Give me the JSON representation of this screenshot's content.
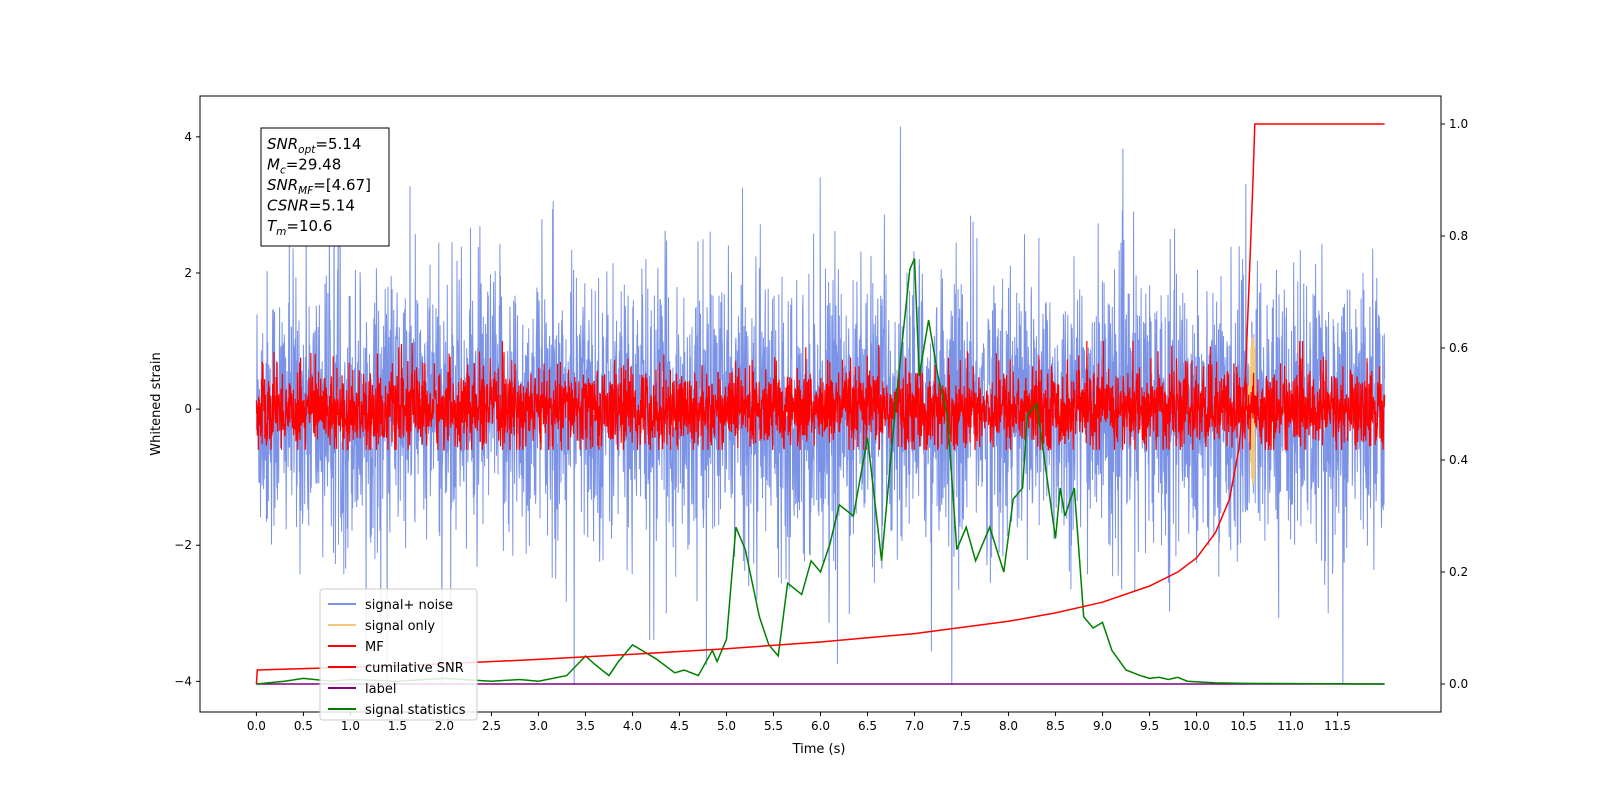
{
  "chart_data": {
    "type": "line",
    "xlabel": "Time (s)",
    "ylabel": "Whitened strain",
    "xlim": [
      -0.6,
      12.6
    ],
    "ylim": [
      -4.45,
      4.6
    ],
    "y2lim": [
      -0.05,
      1.05
    ],
    "xticks": [
      0.0,
      0.5,
      1.0,
      1.5,
      2.0,
      2.5,
      3.0,
      3.5,
      4.0,
      4.5,
      5.0,
      5.5,
      6.0,
      6.5,
      7.0,
      7.5,
      8.0,
      8.5,
      9.0,
      9.5,
      10.0,
      10.5,
      11.0,
      11.5
    ],
    "xtick_labels": [
      "0.0",
      "0.5",
      "1.0",
      "1.5",
      "2.0",
      "2.5",
      "3.0",
      "3.5",
      "4.0",
      "4.5",
      "5.0",
      "5.5",
      "6.0",
      "6.5",
      "7.0",
      "7.5",
      "8.0",
      "8.5",
      "9.0",
      "9.5",
      "10.0",
      "10.5",
      "11.0",
      "11.5"
    ],
    "yticks": [
      -4,
      -2,
      0,
      2,
      4
    ],
    "ytick_labels": [
      "−4",
      "−2",
      "0",
      "2",
      "4"
    ],
    "y2ticks": [
      0.0,
      0.2,
      0.4,
      0.6,
      0.8,
      1.0
    ],
    "y2tick_labels": [
      "0.0",
      "0.2",
      "0.4",
      "0.6",
      "0.8",
      "1.0"
    ],
    "legend_position": "lower-left",
    "annotation": {
      "lines": [
        {
          "base": "SNR",
          "sub": "opt",
          "rest": "=5.14"
        },
        {
          "base": "M",
          "sub": "c",
          "rest": "=29.48"
        },
        {
          "base": "SNR",
          "sub": "MF",
          "rest": "=[4.67]"
        },
        {
          "base": "CSNR",
          "sub": "",
          "rest": "=5.14"
        },
        {
          "base": "T",
          "sub": "m",
          "rest": "=10.6"
        }
      ]
    },
    "series": [
      {
        "name": "signal+ noise",
        "color": "#7b93e6",
        "axis": "left",
        "kind": "noise",
        "x_range": [
          0.0,
          12.0
        ],
        "amplitude": 1.0,
        "min": -4.05,
        "max": 4.15
      },
      {
        "name": "signal only",
        "color": "#f5c87a",
        "axis": "left",
        "kind": "chirp",
        "peak_time": 10.6,
        "peak_amplitude": 1.1
      },
      {
        "name": "MF",
        "color": "#ff0000",
        "axis": "left",
        "kind": "noise",
        "x_range": [
          0.0,
          12.0
        ],
        "amplitude": 0.3,
        "min": -0.6,
        "max": 1.0
      },
      {
        "name": "cumilative SNR",
        "color": "#ff0000",
        "axis": "right",
        "x": [
          0.0,
          0.01,
          1.0,
          2.0,
          3.0,
          4.0,
          5.0,
          6.0,
          7.0,
          8.0,
          8.5,
          9.0,
          9.5,
          9.8,
          10.0,
          10.2,
          10.35,
          10.45,
          10.52,
          10.56,
          10.6,
          10.62,
          12.0
        ],
        "values": [
          0.0,
          0.025,
          0.03,
          0.036,
          0.044,
          0.053,
          0.063,
          0.075,
          0.09,
          0.112,
          0.127,
          0.146,
          0.175,
          0.2,
          0.225,
          0.27,
          0.33,
          0.42,
          0.55,
          0.72,
          0.9,
          1.0,
          1.0
        ]
      },
      {
        "name": "label",
        "color": "#800080",
        "axis": "right",
        "x": [
          0.0,
          12.0
        ],
        "values": [
          0.0,
          0.0
        ]
      },
      {
        "name": "signal statistics",
        "color": "#008000",
        "axis": "right",
        "x": [
          0.0,
          0.3,
          0.5,
          0.8,
          1.0,
          1.5,
          2.0,
          2.5,
          2.8,
          3.0,
          3.3,
          3.5,
          3.6,
          3.75,
          3.85,
          4.0,
          4.1,
          4.25,
          4.45,
          4.55,
          4.7,
          4.85,
          4.9,
          5.0,
          5.1,
          5.2,
          5.35,
          5.45,
          5.55,
          5.65,
          5.8,
          5.9,
          6.0,
          6.1,
          6.2,
          6.35,
          6.5,
          6.65,
          6.8,
          6.95,
          7.0,
          7.05,
          7.15,
          7.25,
          7.35,
          7.45,
          7.55,
          7.65,
          7.8,
          7.95,
          8.05,
          8.15,
          8.2,
          8.3,
          8.4,
          8.5,
          8.55,
          8.6,
          8.7,
          8.8,
          8.9,
          9.0,
          9.1,
          9.25,
          9.4,
          9.5,
          9.6,
          9.7,
          9.8,
          9.9,
          10.2,
          10.5,
          12.0
        ],
        "values": [
          0.0,
          0.005,
          0.01,
          0.005,
          0.008,
          0.005,
          0.01,
          0.005,
          0.008,
          0.005,
          0.015,
          0.05,
          0.035,
          0.015,
          0.04,
          0.07,
          0.06,
          0.045,
          0.02,
          0.025,
          0.015,
          0.06,
          0.04,
          0.08,
          0.28,
          0.24,
          0.12,
          0.07,
          0.05,
          0.18,
          0.16,
          0.22,
          0.2,
          0.25,
          0.32,
          0.3,
          0.44,
          0.22,
          0.5,
          0.74,
          0.76,
          0.55,
          0.65,
          0.55,
          0.48,
          0.24,
          0.28,
          0.22,
          0.28,
          0.2,
          0.33,
          0.35,
          0.48,
          0.5,
          0.38,
          0.26,
          0.35,
          0.3,
          0.35,
          0.12,
          0.1,
          0.11,
          0.06,
          0.025,
          0.015,
          0.01,
          0.012,
          0.008,
          0.012,
          0.005,
          0.002,
          0.001,
          0.0
        ]
      }
    ]
  }
}
